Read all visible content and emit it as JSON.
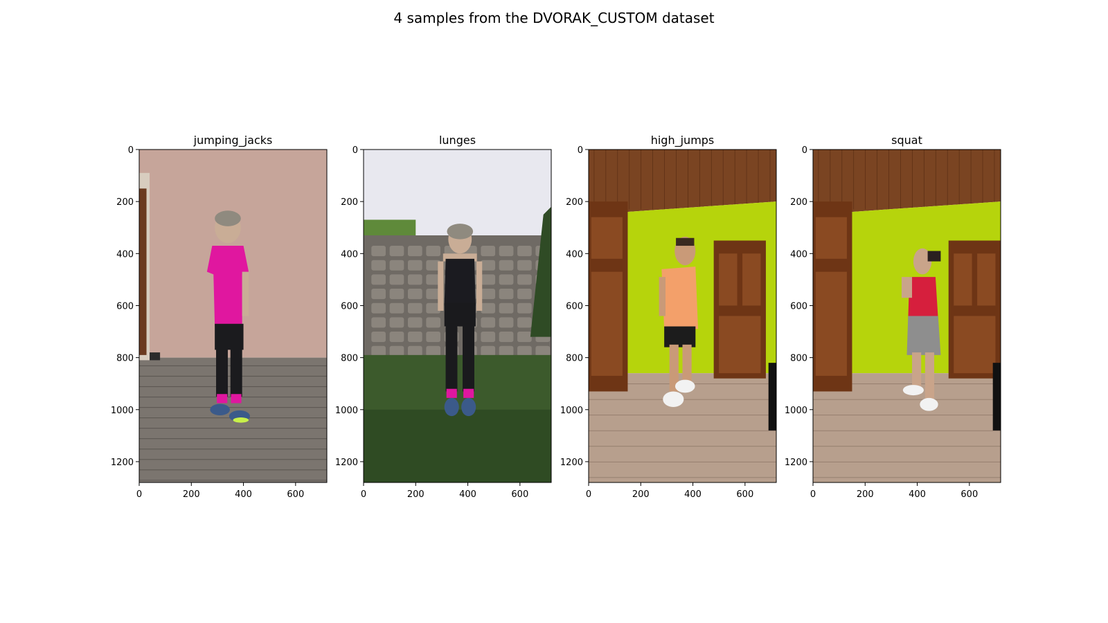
{
  "title": "4 samples from the DVORAK_CUSTOM dataset",
  "chart_data": [
    {
      "type": "image",
      "title": "jumping_jacks",
      "xlim": [
        0,
        720
      ],
      "ylim": [
        0,
        1280
      ],
      "xticks": [
        0,
        200,
        400,
        600
      ],
      "yticks": [
        0,
        200,
        400,
        600,
        800,
        1000,
        1200
      ],
      "scene": {
        "background": "stucco wall with door at left, cobblestone pavement",
        "subject": "woman standing, magenta t-shirt, black leggings",
        "colors": {
          "wall": "#c6a59a",
          "floor": "#7b756f",
          "shirt": "#e0179f",
          "pants": "#1b1b1e",
          "door": "#6b3a1f"
        }
      }
    },
    {
      "type": "image",
      "title": "lunges",
      "xlim": [
        0,
        720
      ],
      "ylim": [
        0,
        1280
      ],
      "xticks": [
        0,
        200,
        400,
        600
      ],
      "yticks": [
        0,
        200,
        400,
        600,
        800,
        1000,
        1200
      ],
      "scene": {
        "background": "pale sky, stone wall, grass lawn",
        "subject": "woman standing, black tank top and leggings",
        "colors": {
          "sky": "#e8e8ef",
          "wall": "#6f6a64",
          "grass": "#3c5a2c",
          "top": "#1b1b20",
          "pants": "#1a1a1d"
        }
      }
    },
    {
      "type": "image",
      "title": "high_jumps",
      "xlim": [
        0,
        720
      ],
      "ylim": [
        0,
        1280
      ],
      "xticks": [
        0,
        200,
        400,
        600
      ],
      "yticks": [
        0,
        200,
        400,
        600,
        800,
        1000,
        1200
      ],
      "scene": {
        "background": "wooden ceiling, lime green wall, wooden wardrobe and door, laminate floor",
        "subject": "man standing, orange t-shirt, black shorts",
        "colors": {
          "ceiling": "#7a4422",
          "wall": "#b6d40c",
          "floor": "#b79f8d",
          "wood": "#6e3515",
          "shirt": "#f3a06a",
          "shorts": "#1c1c1c"
        }
      }
    },
    {
      "type": "image",
      "title": "squat",
      "xlim": [
        0,
        720
      ],
      "ylim": [
        0,
        1280
      ],
      "xticks": [
        0,
        200,
        400,
        600
      ],
      "yticks": [
        0,
        200,
        400,
        600,
        800,
        1000,
        1200
      ],
      "scene": {
        "background": "wooden ceiling, lime green wall, wooden wardrobe and door, laminate floor",
        "subject": "woman standing, red top, patterned shorts",
        "colors": {
          "ceiling": "#7a4422",
          "wall": "#b6d40c",
          "floor": "#b79f8d",
          "wood": "#6e3515",
          "shirt": "#d61f3d",
          "shorts": "#8e8e8e"
        }
      }
    }
  ]
}
